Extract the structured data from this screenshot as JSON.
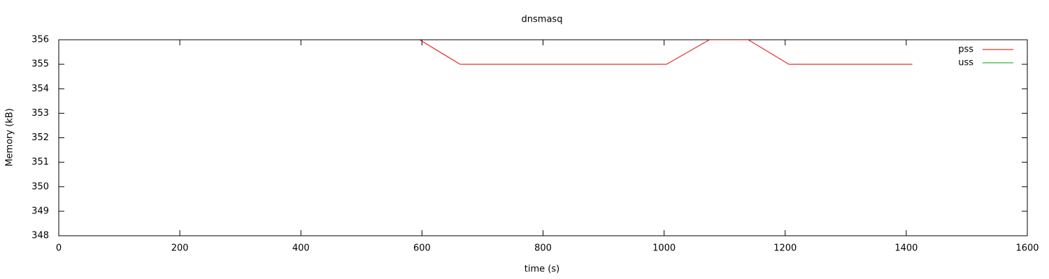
{
  "chart_data": {
    "type": "line",
    "title": "dnsmasq",
    "x_label": "time (s)",
    "y_label": "Memory (kB)",
    "x": [
      596,
      663,
      1004,
      1075,
      1139,
      1206,
      1410
    ],
    "series": [
      {
        "name": "pss",
        "color": "#e00000",
        "values": [
          356,
          355,
          355,
          356,
          356,
          355,
          355
        ]
      },
      {
        "name": "uss",
        "color": "#00a000",
        "values": [
          null,
          null,
          null,
          null,
          null,
          null,
          null
        ]
      }
    ],
    "xlim": [
      0,
      1600
    ],
    "xticks": [
      0,
      200,
      400,
      600,
      800,
      1000,
      1200,
      1400,
      1600
    ],
    "ylim": [
      348,
      356
    ],
    "yticks": [
      348,
      349,
      350,
      351,
      352,
      353,
      354,
      355,
      356
    ],
    "legend": "top-right",
    "grid": false
  }
}
